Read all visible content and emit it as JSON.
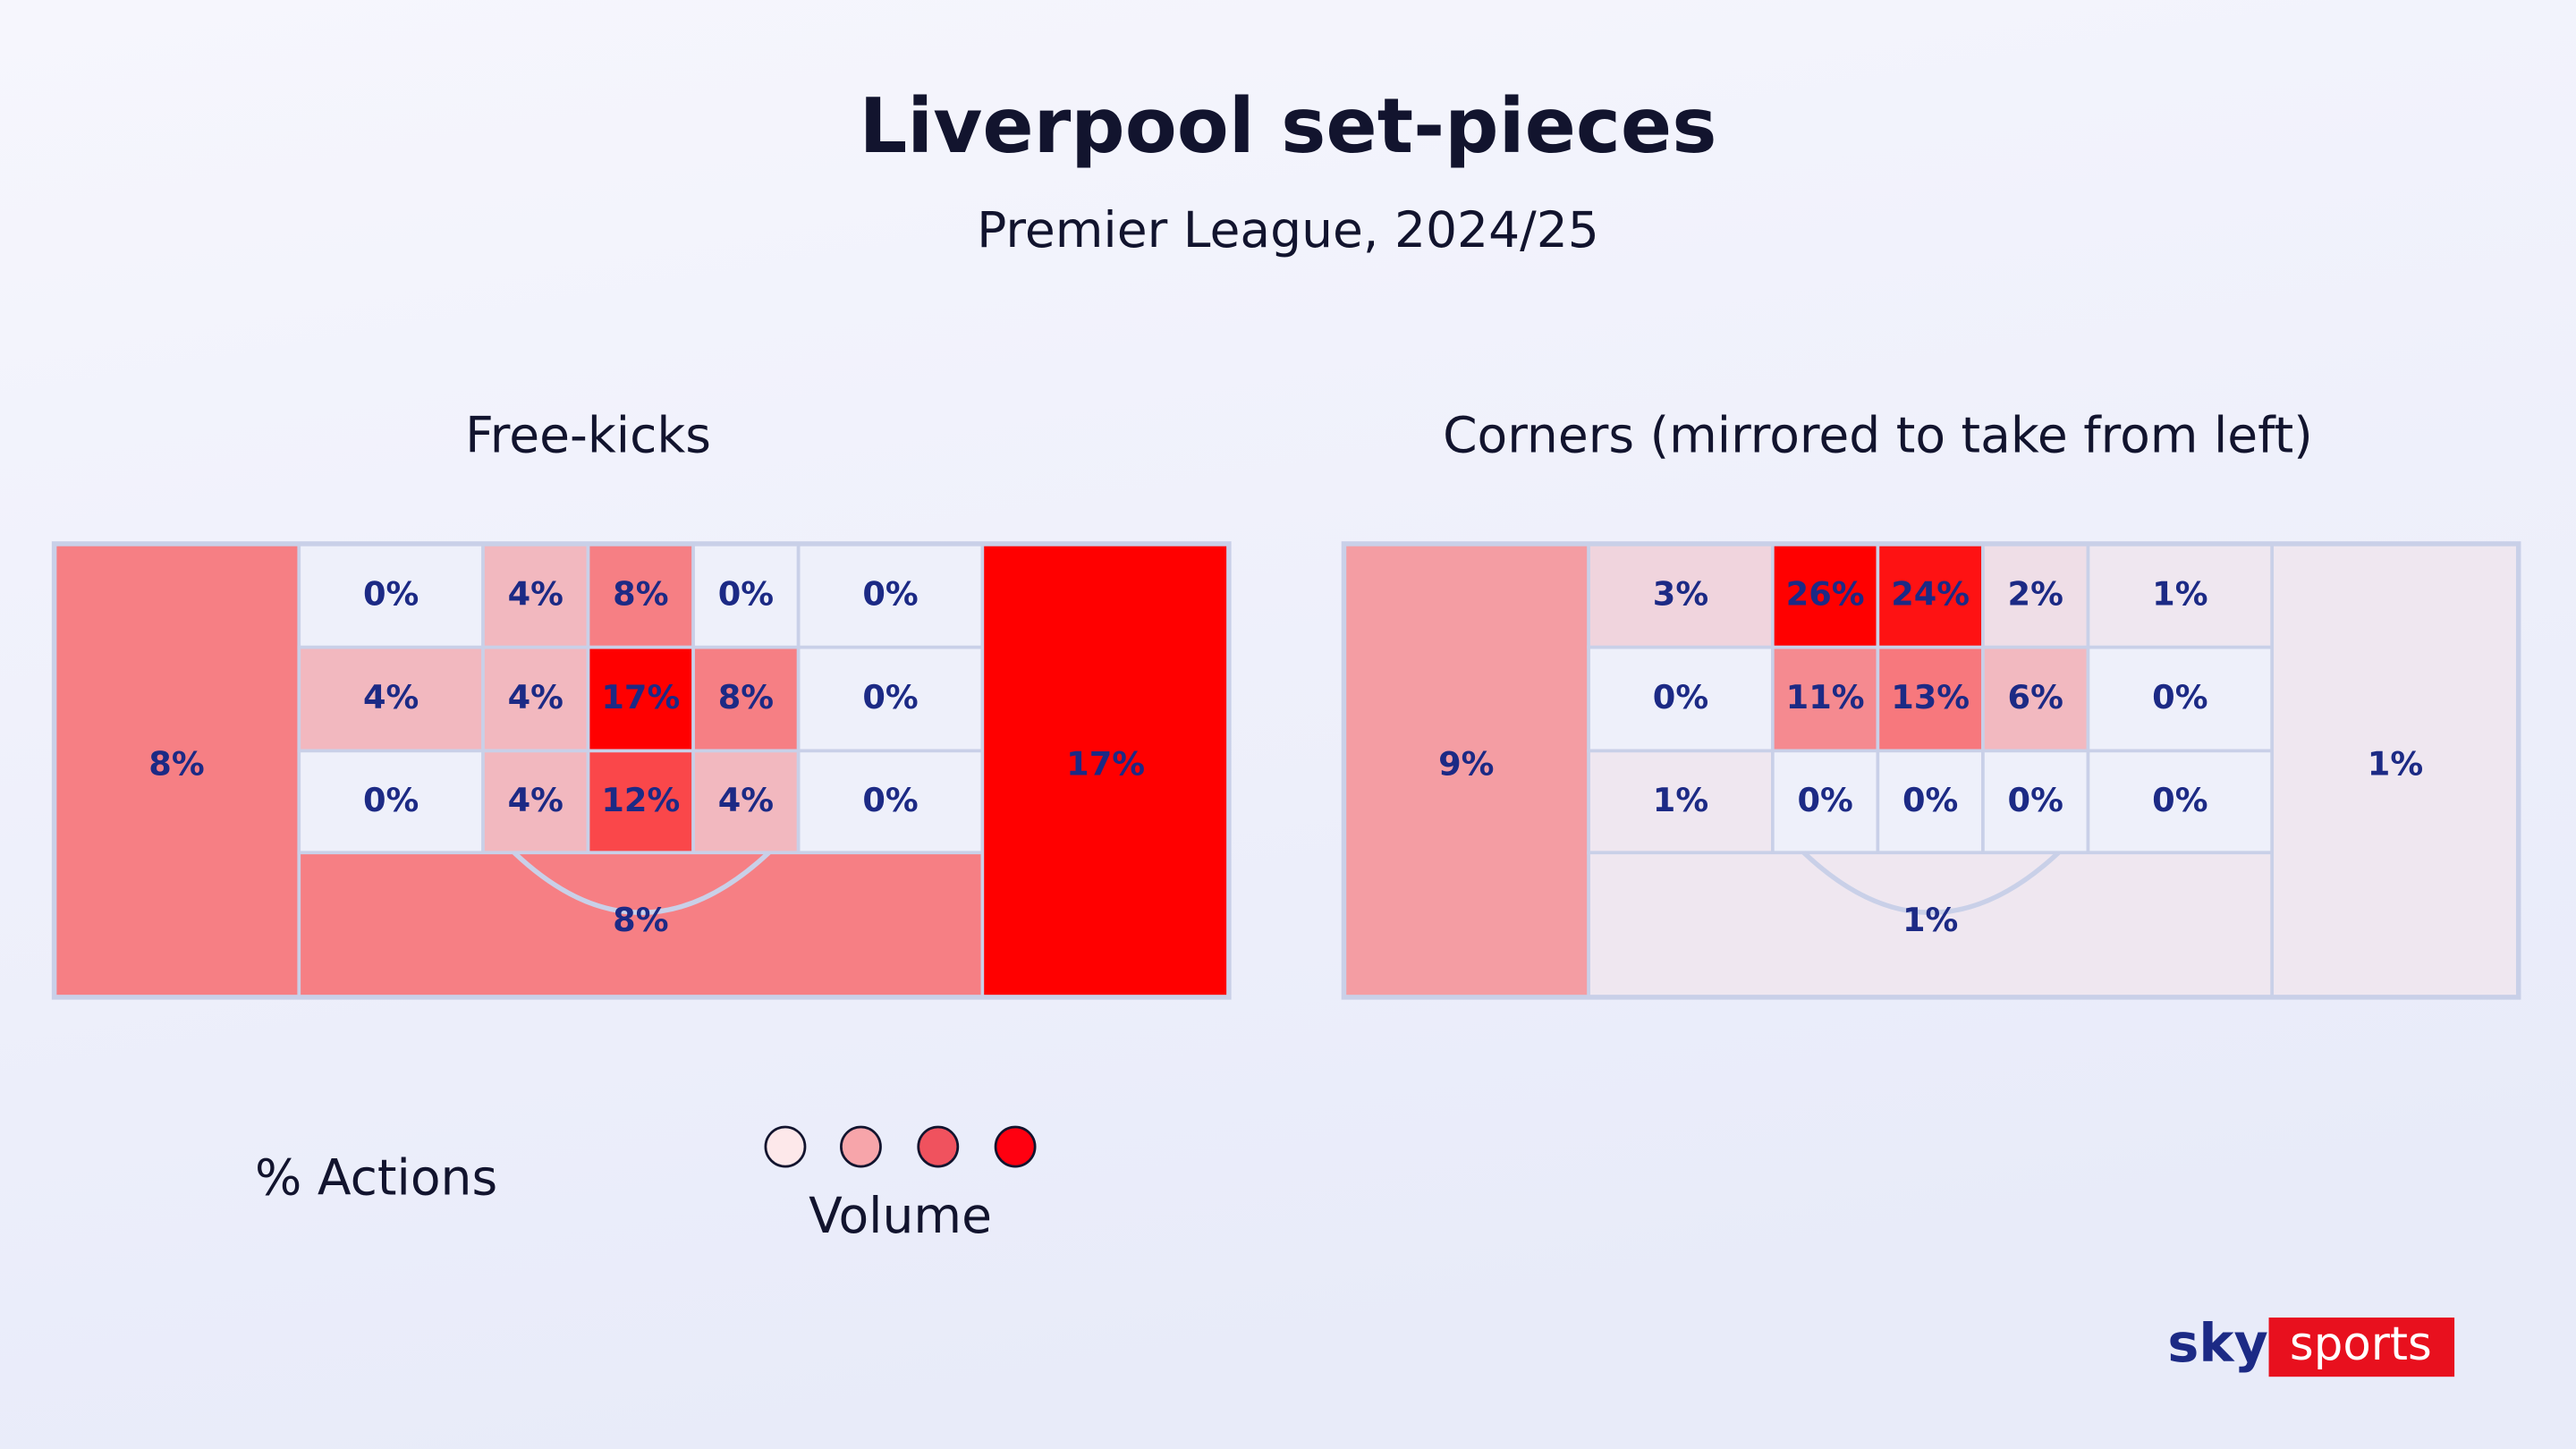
{
  "header": {
    "title": "Liverpool set-pieces",
    "subtitle": "Premier League, 2024/25"
  },
  "legend": {
    "label": "% Actions",
    "title": "Volume"
  },
  "logo": {
    "brand": "sky",
    "product": "sports"
  },
  "chart_data": [
    {
      "type": "heatmap",
      "title": "Free-kicks",
      "values": [
        8,
        0,
        4,
        8,
        0,
        0,
        4,
        4,
        17,
        8,
        0,
        0,
        4,
        12,
        4,
        0,
        8,
        17
      ],
      "value_labels": [
        "8%",
        "0%",
        "4%",
        "8%",
        "0%",
        "0%",
        "4%",
        "4%",
        "17%",
        "8%",
        "0%",
        "0%",
        "4%",
        "12%",
        "4%",
        "0%",
        "8%",
        "17%"
      ]
    },
    {
      "type": "heatmap",
      "title": "Corners (mirrored to take from left)",
      "values": [
        9,
        3,
        26,
        24,
        2,
        1,
        0,
        11,
        13,
        6,
        0,
        1,
        0,
        0,
        0,
        0,
        1,
        1
      ],
      "value_labels": [
        "9%",
        "3%",
        "26%",
        "24%",
        "2%",
        "1%",
        "0%",
        "11%",
        "13%",
        "6%",
        "0%",
        "1%",
        "0%",
        "0%",
        "0%",
        "0%",
        "1%",
        "1%"
      ]
    }
  ]
}
